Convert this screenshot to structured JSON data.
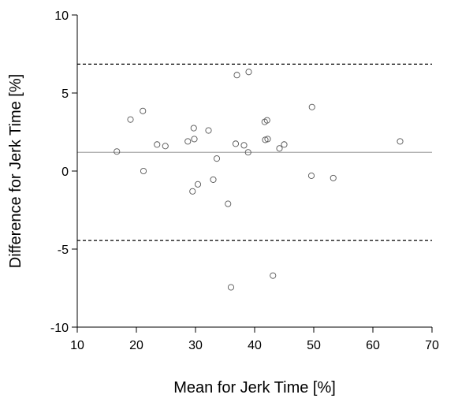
{
  "chart_data": {
    "type": "scatter",
    "title": "",
    "xlabel": "Mean for Jerk Time [%]",
    "ylabel": "Difference for Jerk Time [%]",
    "xlim": [
      10,
      70
    ],
    "ylim": [
      -10,
      10
    ],
    "x_ticks": [
      10,
      20,
      30,
      40,
      50,
      60,
      70
    ],
    "y_ticks": [
      -10,
      -5,
      0,
      5,
      10
    ],
    "x_tick_labels": [
      "10",
      "20",
      "30",
      "40",
      "50",
      "60",
      "70"
    ],
    "y_tick_labels": [
      "-10",
      "-5",
      "0",
      "5",
      "10"
    ],
    "grid": false,
    "legend": "none",
    "reference_lines": [
      {
        "y": 6.85,
        "style": "dashed"
      },
      {
        "y": 1.2,
        "style": "solid",
        "color": "#aaaaaa"
      },
      {
        "y": -4.45,
        "style": "dashed"
      }
    ],
    "points": [
      {
        "x": 16.7,
        "y": 1.25
      },
      {
        "x": 19.0,
        "y": 3.3
      },
      {
        "x": 21.1,
        "y": 3.85
      },
      {
        "x": 21.2,
        "y": 0.0
      },
      {
        "x": 23.5,
        "y": 1.7
      },
      {
        "x": 24.9,
        "y": 1.6
      },
      {
        "x": 28.7,
        "y": 1.9
      },
      {
        "x": 29.5,
        "y": -1.3
      },
      {
        "x": 29.7,
        "y": 2.75
      },
      {
        "x": 29.8,
        "y": 2.05
      },
      {
        "x": 30.4,
        "y": -0.85
      },
      {
        "x": 32.2,
        "y": 2.6
      },
      {
        "x": 33.0,
        "y": -0.55
      },
      {
        "x": 33.6,
        "y": 0.8
      },
      {
        "x": 35.5,
        "y": -2.1
      },
      {
        "x": 36.0,
        "y": -7.45
      },
      {
        "x": 36.8,
        "y": 1.75
      },
      {
        "x": 37.0,
        "y": 6.15
      },
      {
        "x": 38.2,
        "y": 1.65
      },
      {
        "x": 38.9,
        "y": 1.2
      },
      {
        "x": 39.0,
        "y": 6.35
      },
      {
        "x": 41.7,
        "y": 3.15
      },
      {
        "x": 41.8,
        "y": 2.0
      },
      {
        "x": 42.1,
        "y": 3.25
      },
      {
        "x": 42.2,
        "y": 2.05
      },
      {
        "x": 43.1,
        "y": -6.7
      },
      {
        "x": 44.2,
        "y": 1.45
      },
      {
        "x": 45.0,
        "y": 1.7
      },
      {
        "x": 49.6,
        "y": -0.3
      },
      {
        "x": 49.7,
        "y": 4.1
      },
      {
        "x": 53.3,
        "y": -0.45
      },
      {
        "x": 64.6,
        "y": 1.9
      }
    ]
  }
}
